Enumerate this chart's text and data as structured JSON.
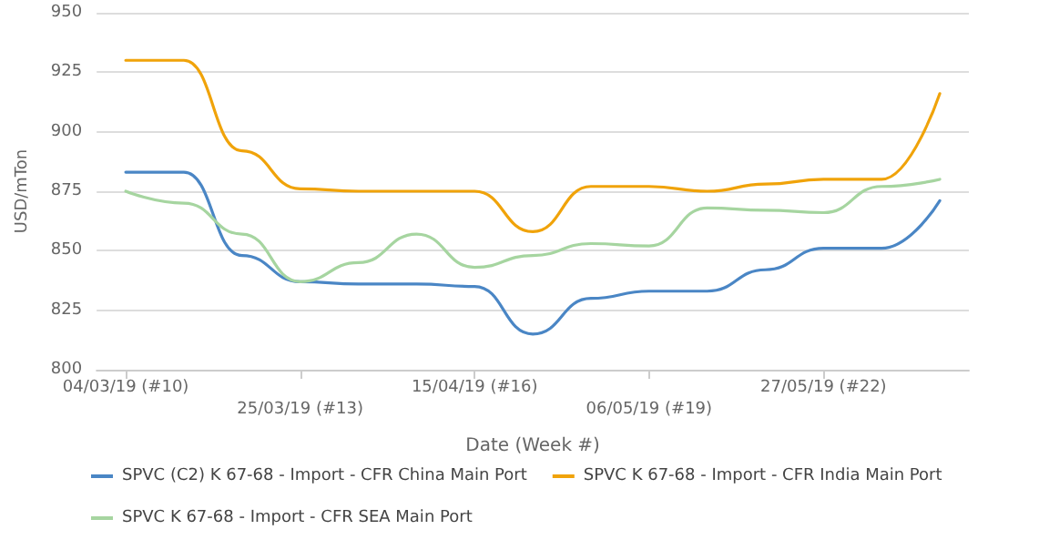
{
  "chart_data": {
    "type": "line",
    "xlabel": "Date (Week #)",
    "ylabel": "USD/mTon",
    "categories": [
      "04/03/19 (#10)",
      null,
      null,
      "25/03/19 (#13)",
      null,
      null,
      "15/04/19 (#16)",
      null,
      null,
      "06/05/19 (#19)",
      null,
      null,
      "27/05/19 (#22)",
      null,
      null
    ],
    "series": [
      {
        "name": "SPVC (C2) K 67-68 - Import - CFR China Main Port",
        "color": "#4a86c5",
        "values": [
          883,
          883,
          848,
          837,
          836,
          836,
          835,
          815,
          830,
          833,
          833,
          842,
          851,
          851,
          871
        ]
      },
      {
        "name": "SPVC K 67-68 - Import - CFR India Main Port",
        "color": "#f0a30a",
        "values": [
          930,
          930,
          892,
          876,
          875,
          875,
          875,
          858,
          877,
          877,
          875,
          878,
          880,
          880,
          916
        ]
      },
      {
        "name": "SPVC K 67-68 - Import - CFR SEA Main Port",
        "color": "#a6d5a0",
        "values": [
          875,
          870,
          857,
          837,
          845,
          857,
          843,
          848,
          853,
          852,
          868,
          867,
          866,
          877,
          880
        ]
      }
    ],
    "ylim": [
      800,
      950
    ],
    "yticks": [
      800,
      825,
      850,
      875,
      900,
      925,
      950
    ],
    "grid": "y",
    "legend": "bottom",
    "marker": "none",
    "line_style": "solid"
  }
}
